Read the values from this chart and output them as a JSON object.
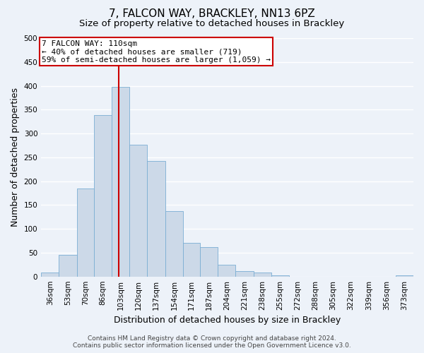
{
  "title": "7, FALCON WAY, BRACKLEY, NN13 6PZ",
  "subtitle": "Size of property relative to detached houses in Brackley",
  "xlabel": "Distribution of detached houses by size in Brackley",
  "ylabel": "Number of detached properties",
  "bin_labels": [
    "36sqm",
    "53sqm",
    "70sqm",
    "86sqm",
    "103sqm",
    "120sqm",
    "137sqm",
    "154sqm",
    "171sqm",
    "187sqm",
    "204sqm",
    "221sqm",
    "238sqm",
    "255sqm",
    "272sqm",
    "288sqm",
    "305sqm",
    "322sqm",
    "339sqm",
    "356sqm",
    "373sqm"
  ],
  "bin_edges": [
    36,
    53,
    70,
    86,
    103,
    120,
    137,
    154,
    171,
    187,
    204,
    221,
    238,
    255,
    272,
    288,
    305,
    322,
    339,
    356,
    373,
    390
  ],
  "bar_heights": [
    8,
    46,
    184,
    338,
    398,
    277,
    242,
    137,
    70,
    62,
    25,
    12,
    8,
    2,
    0,
    0,
    0,
    0,
    0,
    0,
    3
  ],
  "bar_color": "#ccd9e8",
  "bar_edgecolor": "#7aaed4",
  "vline_x": 110,
  "vline_color": "#cc0000",
  "ylim": [
    0,
    500
  ],
  "yticks": [
    0,
    50,
    100,
    150,
    200,
    250,
    300,
    350,
    400,
    450,
    500
  ],
  "annotation_title": "7 FALCON WAY: 110sqm",
  "annotation_line1": "← 40% of detached houses are smaller (719)",
  "annotation_line2": "59% of semi-detached houses are larger (1,059) →",
  "annotation_box_color": "#ffffff",
  "annotation_box_edgecolor": "#cc0000",
  "footer_line1": "Contains HM Land Registry data © Crown copyright and database right 2024.",
  "footer_line2": "Contains public sector information licensed under the Open Government Licence v3.0.",
  "background_color": "#edf2f9",
  "grid_color": "#ffffff",
  "title_fontsize": 11,
  "subtitle_fontsize": 9.5,
  "axis_label_fontsize": 9,
  "tick_fontsize": 7.5,
  "footer_fontsize": 6.5
}
